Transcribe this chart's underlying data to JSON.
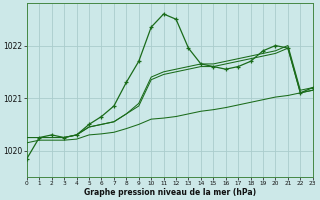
{
  "title": "Graphe pression niveau de la mer (hPa)",
  "background_color": "#cce8e8",
  "grid_color": "#aacccc",
  "line_color": "#1a6b1a",
  "x_ticks": [
    0,
    1,
    2,
    3,
    4,
    5,
    6,
    7,
    8,
    9,
    10,
    11,
    12,
    13,
    14,
    15,
    16,
    17,
    18,
    19,
    20,
    21,
    22,
    23
  ],
  "ylim": [
    1019.5,
    1022.8
  ],
  "yticks": [
    1020,
    1021,
    1022
  ],
  "xlim": [
    0,
    23
  ],
  "series": {
    "main": [
      1019.85,
      1020.25,
      1020.3,
      1020.25,
      1020.3,
      1020.5,
      1020.65,
      1020.85,
      1021.3,
      1021.7,
      1022.35,
      1022.6,
      1022.5,
      1021.95,
      1021.65,
      1021.6,
      1021.55,
      1021.6,
      1021.7,
      1021.9,
      1022.0,
      1021.95,
      1021.1,
      1021.2
    ],
    "line2": [
      1020.25,
      1020.25,
      1020.25,
      1020.25,
      1020.3,
      1020.45,
      1020.5,
      1020.55,
      1020.7,
      1020.9,
      1021.4,
      1021.5,
      1021.55,
      1021.6,
      1021.65,
      1021.65,
      1021.7,
      1021.75,
      1021.8,
      1021.85,
      1021.9,
      1022.0,
      1021.15,
      1021.2
    ],
    "line3": [
      1020.25,
      1020.25,
      1020.25,
      1020.25,
      1020.3,
      1020.45,
      1020.5,
      1020.55,
      1020.7,
      1020.85,
      1021.35,
      1021.45,
      1021.5,
      1021.55,
      1021.6,
      1021.6,
      1021.65,
      1021.7,
      1021.75,
      1021.8,
      1021.85,
      1021.95,
      1021.1,
      1021.15
    ],
    "line4": [
      1020.15,
      1020.2,
      1020.2,
      1020.2,
      1020.22,
      1020.3,
      1020.32,
      1020.35,
      1020.42,
      1020.5,
      1020.6,
      1020.62,
      1020.65,
      1020.7,
      1020.75,
      1020.78,
      1020.82,
      1020.87,
      1020.92,
      1020.97,
      1021.02,
      1021.05,
      1021.1,
      1021.15
    ]
  }
}
